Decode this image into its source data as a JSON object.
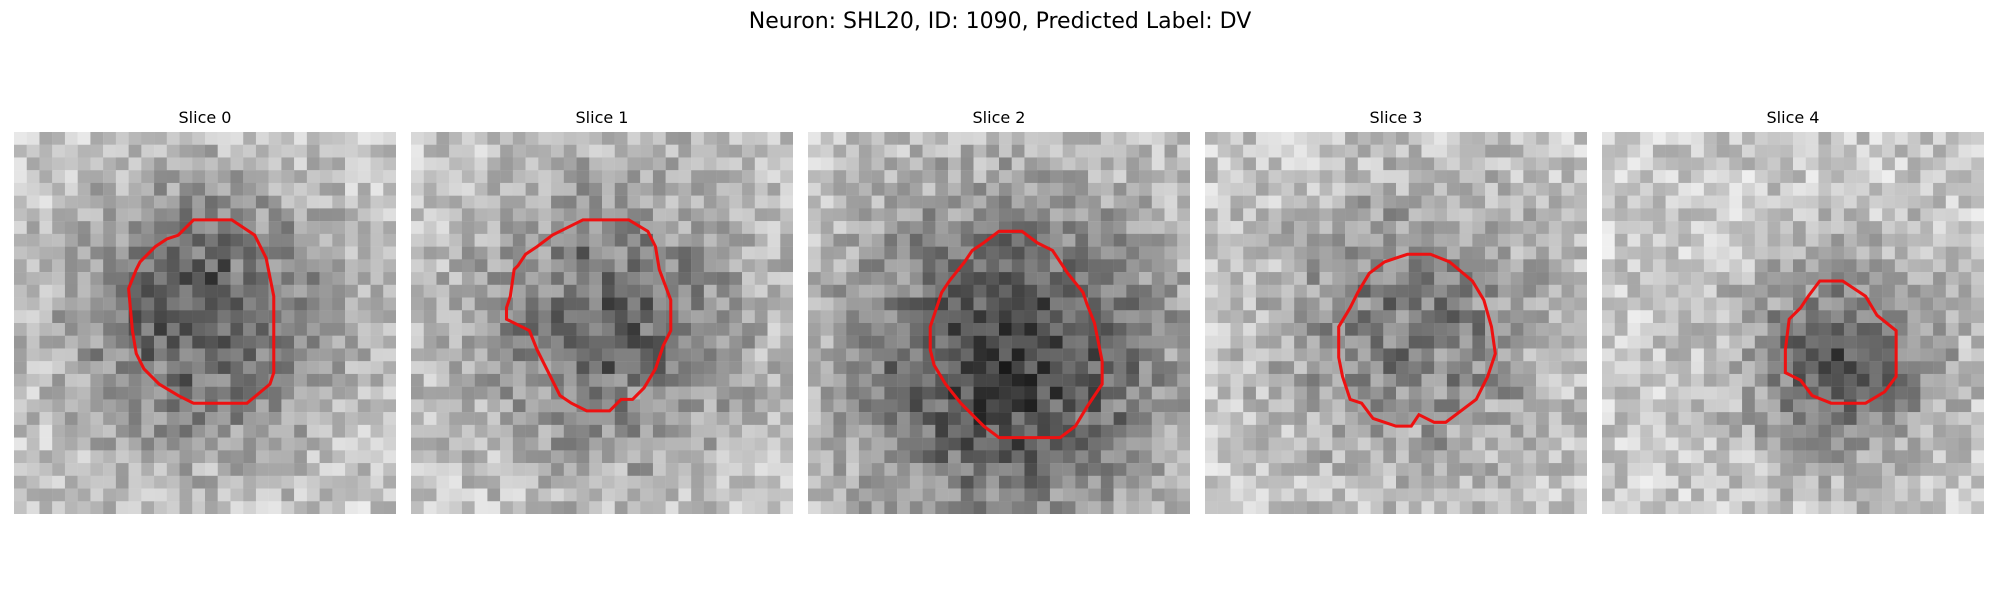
{
  "figure": {
    "suptitle": "Neuron: SHL20, ID: 1090, Predicted Label: DV",
    "contour_color": "#ee1111",
    "colormap": "grayscale",
    "grid_cells": 30
  },
  "slices": [
    {
      "title": "Slice 0",
      "seed": 11,
      "blob_center": [
        0.5,
        0.48
      ],
      "blob_radius": 0.24,
      "blob_strength": 95,
      "contour": [
        [
          0.47,
          0.23
        ],
        [
          0.57,
          0.23
        ],
        [
          0.63,
          0.27
        ],
        [
          0.66,
          0.33
        ],
        [
          0.68,
          0.43
        ],
        [
          0.68,
          0.63
        ],
        [
          0.67,
          0.66
        ],
        [
          0.61,
          0.71
        ],
        [
          0.6,
          0.71
        ],
        [
          0.47,
          0.71
        ],
        [
          0.43,
          0.69
        ],
        [
          0.38,
          0.66
        ],
        [
          0.34,
          0.62
        ],
        [
          0.32,
          0.58
        ],
        [
          0.31,
          0.52
        ],
        [
          0.3,
          0.41
        ],
        [
          0.32,
          0.36
        ],
        [
          0.33,
          0.34
        ],
        [
          0.37,
          0.3
        ],
        [
          0.4,
          0.28
        ],
        [
          0.43,
          0.27
        ]
      ]
    },
    {
      "title": "Slice 1",
      "seed": 23,
      "blob_center": [
        0.52,
        0.5
      ],
      "blob_radius": 0.26,
      "blob_strength": 80,
      "contour": [
        [
          0.37,
          0.27
        ],
        [
          0.39,
          0.26
        ],
        [
          0.43,
          0.24
        ],
        [
          0.45,
          0.23
        ],
        [
          0.57,
          0.23
        ],
        [
          0.62,
          0.26
        ],
        [
          0.64,
          0.3
        ],
        [
          0.65,
          0.36
        ],
        [
          0.68,
          0.44
        ],
        [
          0.68,
          0.52
        ],
        [
          0.66,
          0.56
        ],
        [
          0.64,
          0.62
        ],
        [
          0.61,
          0.67
        ],
        [
          0.58,
          0.7
        ],
        [
          0.55,
          0.7
        ],
        [
          0.52,
          0.73
        ],
        [
          0.46,
          0.73
        ],
        [
          0.42,
          0.71
        ],
        [
          0.39,
          0.69
        ],
        [
          0.37,
          0.65
        ],
        [
          0.35,
          0.61
        ],
        [
          0.33,
          0.57
        ],
        [
          0.31,
          0.52
        ],
        [
          0.25,
          0.49
        ],
        [
          0.25,
          0.46
        ],
        [
          0.26,
          0.43
        ],
        [
          0.27,
          0.36
        ],
        [
          0.28,
          0.35
        ],
        [
          0.3,
          0.32
        ],
        [
          0.33,
          0.3
        ]
      ]
    },
    {
      "title": "Slice 2",
      "seed": 37,
      "blob_center": [
        0.53,
        0.6
      ],
      "blob_radius": 0.3,
      "blob_strength": 120,
      "contour": [
        [
          0.5,
          0.26
        ],
        [
          0.56,
          0.26
        ],
        [
          0.6,
          0.29
        ],
        [
          0.64,
          0.31
        ],
        [
          0.68,
          0.37
        ],
        [
          0.72,
          0.42
        ],
        [
          0.73,
          0.45
        ],
        [
          0.75,
          0.5
        ],
        [
          0.77,
          0.6
        ],
        [
          0.77,
          0.66
        ],
        [
          0.73,
          0.72
        ],
        [
          0.7,
          0.77
        ],
        [
          0.66,
          0.8
        ],
        [
          0.58,
          0.8
        ],
        [
          0.55,
          0.8
        ],
        [
          0.5,
          0.8
        ],
        [
          0.46,
          0.77
        ],
        [
          0.4,
          0.71
        ],
        [
          0.36,
          0.66
        ],
        [
          0.33,
          0.61
        ],
        [
          0.32,
          0.57
        ],
        [
          0.32,
          0.51
        ],
        [
          0.35,
          0.42
        ],
        [
          0.37,
          0.39
        ],
        [
          0.41,
          0.34
        ],
        [
          0.43,
          0.31
        ],
        [
          0.46,
          0.29
        ]
      ]
    },
    {
      "title": "Slice 3",
      "seed": 51,
      "blob_center": [
        0.55,
        0.52
      ],
      "blob_radius": 0.25,
      "blob_strength": 60,
      "contour": [
        [
          0.53,
          0.32
        ],
        [
          0.59,
          0.32
        ],
        [
          0.64,
          0.34
        ],
        [
          0.7,
          0.39
        ],
        [
          0.73,
          0.44
        ],
        [
          0.75,
          0.51
        ],
        [
          0.76,
          0.58
        ],
        [
          0.74,
          0.64
        ],
        [
          0.71,
          0.7
        ],
        [
          0.67,
          0.73
        ],
        [
          0.63,
          0.76
        ],
        [
          0.6,
          0.76
        ],
        [
          0.56,
          0.74
        ],
        [
          0.54,
          0.77
        ],
        [
          0.5,
          0.77
        ],
        [
          0.44,
          0.75
        ],
        [
          0.41,
          0.71
        ],
        [
          0.38,
          0.7
        ],
        [
          0.36,
          0.64
        ],
        [
          0.35,
          0.59
        ],
        [
          0.35,
          0.51
        ],
        [
          0.38,
          0.46
        ],
        [
          0.4,
          0.42
        ],
        [
          0.43,
          0.37
        ],
        [
          0.47,
          0.34
        ]
      ]
    },
    {
      "title": "Slice 4",
      "seed": 67,
      "blob_center": [
        0.63,
        0.6
      ],
      "blob_radius": 0.18,
      "blob_strength": 90,
      "contour": [
        [
          0.57,
          0.39
        ],
        [
          0.63,
          0.39
        ],
        [
          0.66,
          0.41
        ],
        [
          0.69,
          0.43
        ],
        [
          0.72,
          0.48
        ],
        [
          0.77,
          0.52
        ],
        [
          0.77,
          0.64
        ],
        [
          0.74,
          0.68
        ],
        [
          0.69,
          0.71
        ],
        [
          0.66,
          0.71
        ],
        [
          0.6,
          0.71
        ],
        [
          0.55,
          0.69
        ],
        [
          0.52,
          0.65
        ],
        [
          0.48,
          0.63
        ],
        [
          0.48,
          0.57
        ],
        [
          0.49,
          0.49
        ],
        [
          0.52,
          0.46
        ],
        [
          0.54,
          0.43
        ]
      ]
    }
  ]
}
